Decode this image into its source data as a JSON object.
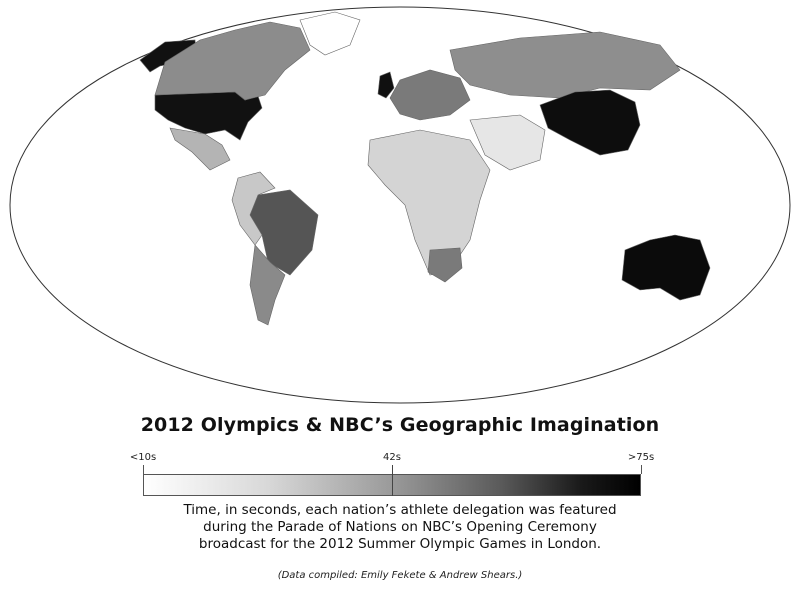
{
  "title": "2012 Olympics & NBC’s Geographic Imagination",
  "legend": {
    "low_label": "<10s",
    "mid_label": "42s",
    "high_label": ">75s",
    "low_color": "#ffffff",
    "high_color": "#000000"
  },
  "description": [
    "Time, in seconds, each nation’s athlete delegation was featured",
    "during the Parade of Nations on NBC’s Opening Ceremony",
    "broadcast for the 2012 Summer Olympic Games in London."
  ],
  "credit": "(Data compiled: Emily Fekete & Andrew Shears.)",
  "map": {
    "projection": "world-ellipse",
    "highlighted_regions": [
      {
        "name": "United States",
        "shade": "#111111"
      },
      {
        "name": "Alaska",
        "shade": "#111111"
      },
      {
        "name": "Canada",
        "shade": "#8c8c8c"
      },
      {
        "name": "Mexico",
        "shade": "#b4b4b4"
      },
      {
        "name": "Brazil",
        "shade": "#555555"
      },
      {
        "name": "Argentina",
        "shade": "#8a8a8a"
      },
      {
        "name": "South America (other)",
        "shade": "#c8c8c8"
      },
      {
        "name": "Greenland",
        "shade": "#ffffff"
      },
      {
        "name": "United Kingdom",
        "shade": "#101010"
      },
      {
        "name": "Europe",
        "shade": "#7a7a7a"
      },
      {
        "name": "Russia",
        "shade": "#8e8e8e"
      },
      {
        "name": "China",
        "shade": "#0d0d0d"
      },
      {
        "name": "Africa",
        "shade": "#d4d4d4"
      },
      {
        "name": "South Africa",
        "shade": "#7a7a7a"
      },
      {
        "name": "Middle East",
        "shade": "#e6e6e6"
      },
      {
        "name": "Australia",
        "shade": "#0b0b0b"
      }
    ]
  }
}
